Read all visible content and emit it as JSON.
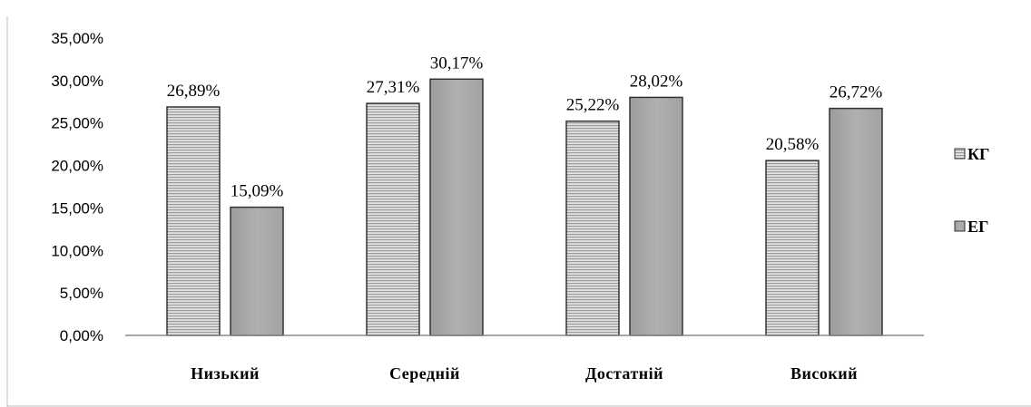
{
  "chart_data": {
    "type": "bar",
    "categories": [
      "Низький",
      "Середній",
      "Достатній",
      "Високий"
    ],
    "series": [
      {
        "name": "КГ",
        "values": [
          26.89,
          27.31,
          25.22,
          20.58
        ],
        "labels": [
          "26,89%",
          "27,31%",
          "25,22%",
          "20,58%"
        ],
        "fill": "striped-grey"
      },
      {
        "name": "ЕГ",
        "values": [
          15.09,
          30.17,
          28.02,
          26.72
        ],
        "labels": [
          "15,09%",
          "30,17%",
          "28,02%",
          "26,72%"
        ],
        "fill": "solid-grey"
      }
    ],
    "ylim": [
      0,
      35
    ],
    "yticks": [
      0,
      5,
      10,
      15,
      20,
      25,
      30,
      35
    ],
    "ytick_labels": [
      "0,00%",
      "5,00%",
      "10,00%",
      "15,00%",
      "20,00%",
      "25,00%",
      "30,00%",
      "35,00%"
    ],
    "xlabel": "",
    "ylabel": "",
    "title": "",
    "grid": false,
    "legend_position": "right",
    "colors": {
      "series1_fill": "#e0e0e0",
      "series1_stripe": "#9a9a9a",
      "series2_fill": "#a6a6a6",
      "bar_outline": "#333333",
      "axis": "#8c8c8c"
    }
  }
}
